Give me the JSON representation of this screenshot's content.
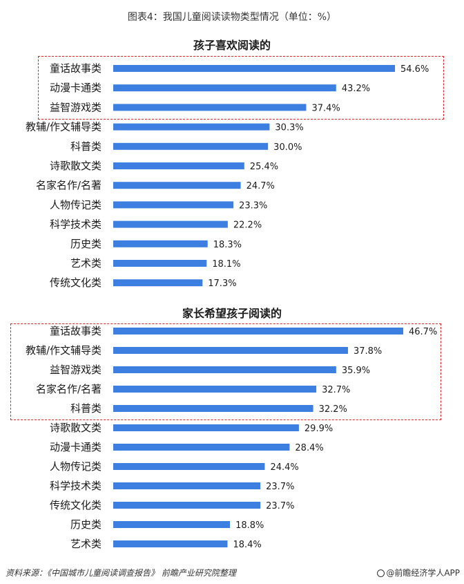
{
  "figure_title": "图表4：我国儿童阅读读物类型情况（单位：%）",
  "source_text": "资料来源：《中国城市儿童阅读调查报告》 前瞻产业研究院整理",
  "brand_text": "@前瞻经济学人APP",
  "colors": {
    "bar": "#3d7fe0",
    "highlight": "#e02020"
  },
  "chart_data": [
    {
      "type": "bar",
      "orientation": "horizontal",
      "title": "孩子喜欢阅读的",
      "categories": [
        "童话故事类",
        "动漫卡通类",
        "益智游戏类",
        "教辅/作文辅导类",
        "科普类",
        "诗歌散文类",
        "名家名作/名著",
        "人物传记类",
        "科学技术类",
        "历史类",
        "艺术类",
        "传统文化类"
      ],
      "values": [
        54.6,
        43.2,
        37.4,
        30.3,
        30.0,
        25.4,
        24.7,
        23.3,
        22.2,
        18.3,
        18.1,
        17.3
      ],
      "value_labels": [
        "54.6%",
        "43.2%",
        "37.4%",
        "30.3%",
        "30.0%",
        "25.4%",
        "24.7%",
        "23.3%",
        "22.2%",
        "18.3%",
        "18.1%",
        "17.3%"
      ],
      "highlighted_top": 3
    },
    {
      "type": "bar",
      "orientation": "horizontal",
      "title": "家长希望孩子阅读的",
      "categories": [
        "童话故事类",
        "教辅/作文辅导类",
        "益智游戏类",
        "名家名作/名著",
        "科普类",
        "诗歌散文类",
        "动漫卡通类",
        "人物传记类",
        "科学技术类",
        "传统文化类",
        "历史类",
        "艺术类"
      ],
      "values": [
        46.7,
        37.8,
        35.9,
        32.7,
        32.2,
        29.9,
        28.4,
        24.4,
        23.7,
        23.7,
        18.8,
        18.4
      ],
      "value_labels": [
        "46.7%",
        "37.8%",
        "35.9%",
        "32.7%",
        "32.2%",
        "29.9%",
        "28.4%",
        "24.4%",
        "23.7%",
        "23.7%",
        "18.8%",
        "18.4%"
      ],
      "highlighted_top": 5
    }
  ]
}
